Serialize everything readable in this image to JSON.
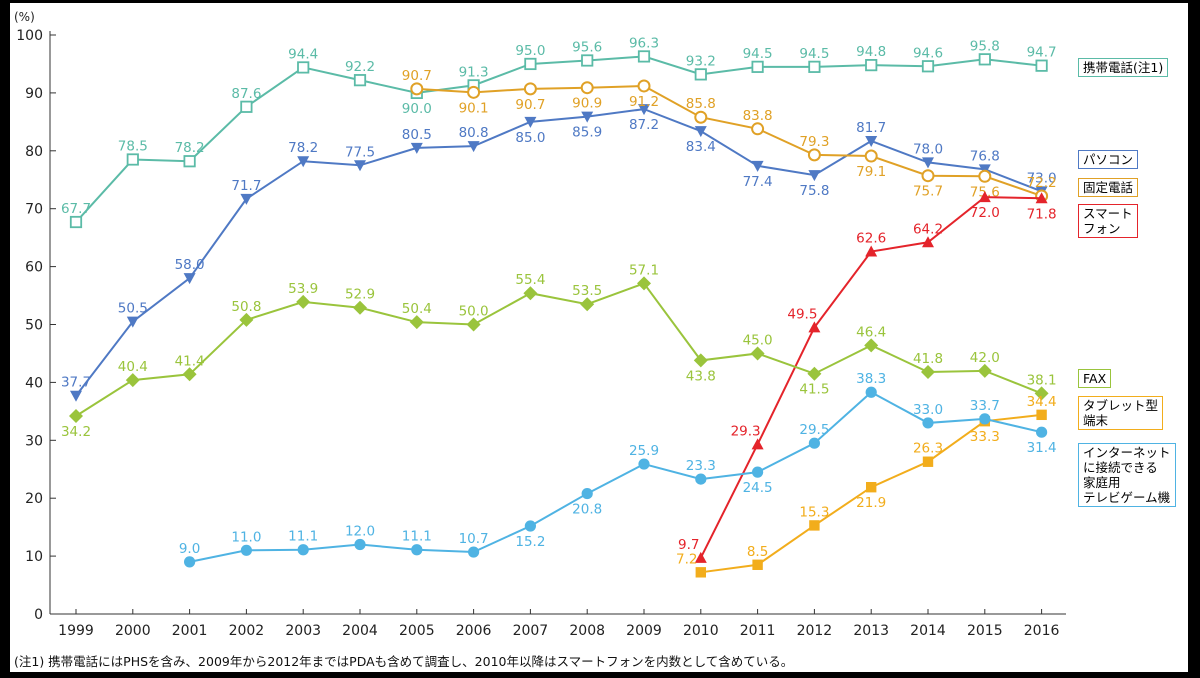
{
  "chart_data": {
    "type": "line",
    "ylabel": "(%)",
    "ylim": [
      0,
      100
    ],
    "yticks": [
      0,
      10,
      20,
      30,
      40,
      50,
      60,
      70,
      80,
      90,
      100
    ],
    "grid": false,
    "x": [
      "1999",
      "2000",
      "2001",
      "2002",
      "2003",
      "2004",
      "2005",
      "2006",
      "2007",
      "2008",
      "2009",
      "2010",
      "2011",
      "2012",
      "2013",
      "2014",
      "2015",
      "2016"
    ],
    "series": [
      {
        "name": "携帯電話(注1)",
        "color": "#5bbba7",
        "marker": "square-open",
        "values": [
          67.7,
          78.5,
          78.2,
          87.6,
          94.4,
          92.2,
          90.0,
          91.3,
          95.0,
          95.6,
          96.3,
          93.2,
          94.5,
          94.5,
          94.8,
          94.6,
          95.8,
          94.7
        ]
      },
      {
        "name": "パソコン",
        "color": "#4f79c4",
        "marker": "triangle-down",
        "values": [
          37.7,
          50.5,
          58.0,
          71.7,
          78.2,
          77.5,
          80.5,
          80.8,
          85.0,
          85.9,
          87.2,
          83.4,
          77.4,
          75.8,
          81.7,
          78.0,
          76.8,
          73.0
        ]
      },
      {
        "name": "固定電話",
        "color": "#e0a126",
        "marker": "circle-open",
        "values": [
          null,
          null,
          null,
          null,
          null,
          null,
          90.7,
          90.1,
          90.7,
          90.9,
          91.2,
          85.8,
          83.8,
          79.3,
          79.1,
          75.7,
          75.6,
          72.2
        ]
      },
      {
        "name": "スマートフォン",
        "color": "#e4242b",
        "marker": "triangle-up",
        "values": [
          null,
          null,
          null,
          null,
          null,
          null,
          null,
          null,
          null,
          null,
          null,
          9.7,
          29.3,
          49.5,
          62.6,
          64.2,
          72.0,
          71.8
        ]
      },
      {
        "name": "FAX",
        "color": "#9ac43c",
        "marker": "diamond",
        "values": [
          34.2,
          40.4,
          41.4,
          50.8,
          53.9,
          52.9,
          50.4,
          50.0,
          55.4,
          53.5,
          57.1,
          43.8,
          45.0,
          41.5,
          46.4,
          41.8,
          42.0,
          38.1
        ]
      },
      {
        "name": "タブレット型端末",
        "color": "#f2ad1c",
        "marker": "square",
        "values": [
          null,
          null,
          null,
          null,
          null,
          null,
          null,
          null,
          null,
          null,
          null,
          7.2,
          8.5,
          15.3,
          21.9,
          26.3,
          33.3,
          34.4
        ]
      },
      {
        "name": "インターネットに接続できる家庭用テレビゲーム機",
        "color": "#4fb3e3",
        "marker": "circle",
        "values": [
          null,
          null,
          9.0,
          11.0,
          11.1,
          12.0,
          11.1,
          10.7,
          15.2,
          20.8,
          25.9,
          23.3,
          24.5,
          29.5,
          38.3,
          33.0,
          33.7,
          31.4
        ]
      }
    ]
  },
  "legend": {
    "mobile": "携帯電話(注1)",
    "pc": "パソコン",
    "landline": "固定電話",
    "smartphone": "スマート\nフォン",
    "fax": "FAX",
    "tablet": "タブレット型\n端末",
    "game": "インターネット\nに接続できる\n家庭用\nテレビゲーム機"
  },
  "footnote": "(注1) 携帯電話にはPHSを含み、2009年から2012年まではPDAも含めて調査し、2010年以降はスマートフォンを内数として含めている。"
}
